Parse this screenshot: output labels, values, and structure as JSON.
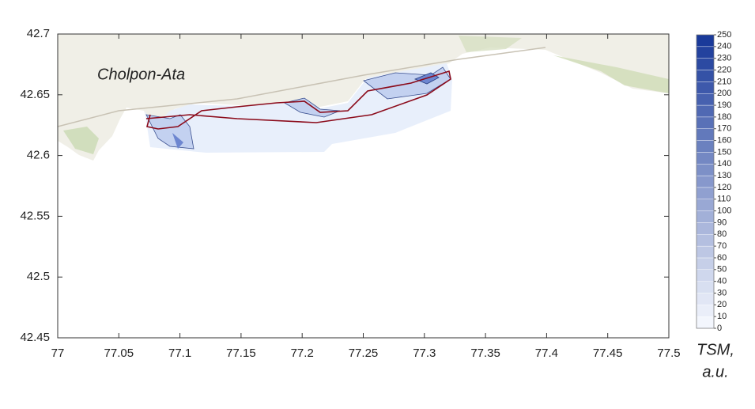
{
  "chart_data": {
    "type": "contour-map",
    "place_label": "Cholpon-Ata",
    "xlim": [
      77,
      77.5
    ],
    "xticks": [
      77,
      77.05,
      77.1,
      77.15,
      77.2,
      77.25,
      77.3,
      77.35,
      77.4,
      77.45,
      77.5
    ],
    "ylim": [
      42.45,
      42.7
    ],
    "yticks": [
      42.45,
      42.5,
      42.55,
      42.6,
      42.65,
      42.7
    ],
    "colorbar": {
      "ticks": [
        0,
        10,
        20,
        30,
        40,
        50,
        60,
        70,
        80,
        90,
        100,
        110,
        120,
        130,
        140,
        150,
        160,
        170,
        180,
        190,
        200,
        210,
        220,
        230,
        240,
        250
      ],
      "colors": [
        "#f3f6fd",
        "#1a3a9a"
      ],
      "label": [
        "TSM,",
        "a.u."
      ]
    }
  }
}
